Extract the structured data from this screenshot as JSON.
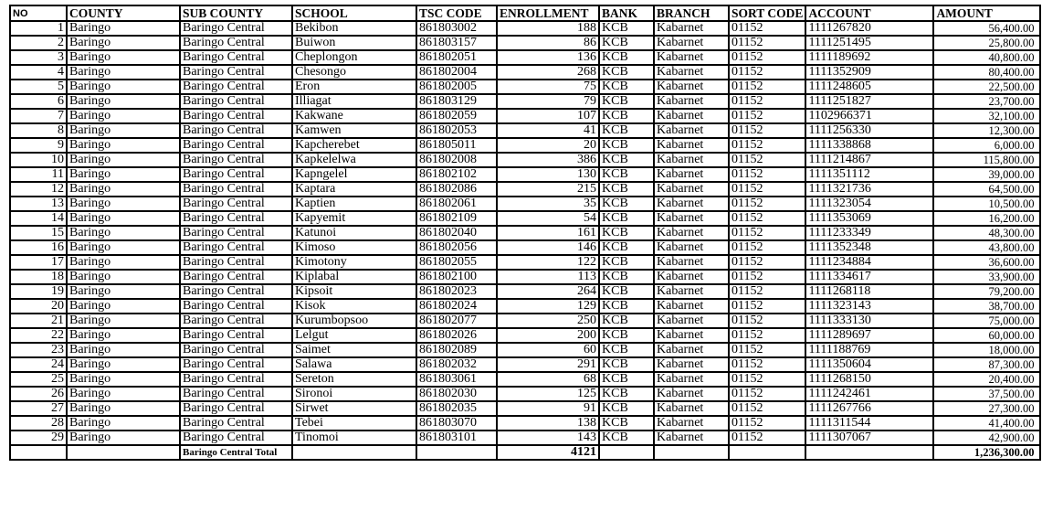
{
  "columns": [
    "NO",
    "COUNTY",
    "SUB COUNTY",
    "SCHOOL",
    "TSC CODE",
    "ENROLLMENT",
    "BANK",
    "BRANCH",
    "SORT CODE",
    "ACCOUNT",
    "AMOUNT"
  ],
  "rows": [
    [
      "1",
      "Baringo",
      "Baringo Central",
      "Bekibon",
      "861803002",
      "188",
      "KCB",
      "Kabarnet",
      "01152",
      "1111267820",
      "56,400.00"
    ],
    [
      "2",
      "Baringo",
      "Baringo Central",
      "Buiwon",
      "861803157",
      "86",
      "KCB",
      "Kabarnet",
      "01152",
      "1111251495",
      "25,800.00"
    ],
    [
      "3",
      "Baringo",
      "Baringo Central",
      "Cheplongon",
      "861802051",
      "136",
      "KCB",
      "Kabarnet",
      "01152",
      "1111189692",
      "40,800.00"
    ],
    [
      "4",
      "Baringo",
      "Baringo Central",
      "Chesongo",
      "861802004",
      "268",
      "KCB",
      "Kabarnet",
      "01152",
      "1111352909",
      "80,400.00"
    ],
    [
      "5",
      "Baringo",
      "Baringo Central",
      "Eron",
      "861802005",
      "75",
      "KCB",
      "Kabarnet",
      "01152",
      "1111248605",
      "22,500.00"
    ],
    [
      "6",
      "Baringo",
      "Baringo Central",
      "Illiagat",
      "861803129",
      "79",
      "KCB",
      "Kabarnet",
      "01152",
      "1111251827",
      "23,700.00"
    ],
    [
      "7",
      "Baringo",
      "Baringo Central",
      "Kakwane",
      "861802059",
      "107",
      "KCB",
      "Kabarnet",
      "01152",
      "1102966371",
      "32,100.00"
    ],
    [
      "8",
      "Baringo",
      "Baringo Central",
      "Kamwen",
      "861802053",
      "41",
      "KCB",
      "Kabarnet",
      "01152",
      "1111256330",
      "12,300.00"
    ],
    [
      "9",
      "Baringo",
      "Baringo Central",
      "Kapcherebet",
      "861805011",
      "20",
      "KCB",
      "Kabarnet",
      "01152",
      "1111338868",
      "6,000.00"
    ],
    [
      "10",
      "Baringo",
      "Baringo Central",
      "Kapkelelwa",
      "861802008",
      "386",
      "KCB",
      "Kabarnet",
      "01152",
      "1111214867",
      "115,800.00"
    ],
    [
      "11",
      "Baringo",
      "Baringo Central",
      "Kapngelel",
      "861802102",
      "130",
      "KCB",
      "Kabarnet",
      "01152",
      "1111351112",
      "39,000.00"
    ],
    [
      "12",
      "Baringo",
      "Baringo Central",
      "Kaptara",
      "861802086",
      "215",
      "KCB",
      "Kabarnet",
      "01152",
      "1111321736",
      "64,500.00"
    ],
    [
      "13",
      "Baringo",
      "Baringo Central",
      "Kaptien",
      "861802061",
      "35",
      "KCB",
      "Kabarnet",
      "01152",
      "1111323054",
      "10,500.00"
    ],
    [
      "14",
      "Baringo",
      "Baringo Central",
      "Kapyemit",
      "861802109",
      "54",
      "KCB",
      "Kabarnet",
      "01152",
      "1111353069",
      "16,200.00"
    ],
    [
      "15",
      "Baringo",
      "Baringo Central",
      "Katunoi",
      "861802040",
      "161",
      "KCB",
      "Kabarnet",
      "01152",
      "1111233349",
      "48,300.00"
    ],
    [
      "16",
      "Baringo",
      "Baringo Central",
      "Kimoso",
      "861802056",
      "146",
      "KCB",
      "Kabarnet",
      "01152",
      "1111352348",
      "43,800.00"
    ],
    [
      "17",
      "Baringo",
      "Baringo Central",
      "Kimotony",
      "861802055",
      "122",
      "KCB",
      "Kabarnet",
      "01152",
      "1111234884",
      "36,600.00"
    ],
    [
      "18",
      "Baringo",
      "Baringo Central",
      "Kiplabal",
      "861802100",
      "113",
      "KCB",
      "Kabarnet",
      "01152",
      "1111334617",
      "33,900.00"
    ],
    [
      "19",
      "Baringo",
      "Baringo Central",
      "Kipsoit",
      "861802023",
      "264",
      "KCB",
      "Kabarnet",
      "01152",
      "1111268118",
      "79,200.00"
    ],
    [
      "20",
      "Baringo",
      "Baringo Central",
      "Kisok",
      "861802024",
      "129",
      "KCB",
      "Kabarnet",
      "01152",
      "1111323143",
      "38,700.00"
    ],
    [
      "21",
      "Baringo",
      "Baringo Central",
      "Kurumbopsoo",
      "861802077",
      "250",
      "KCB",
      "Kabarnet",
      "01152",
      "1111333130",
      "75,000.00"
    ],
    [
      "22",
      "Baringo",
      "Baringo Central",
      "Lelgut",
      "861802026",
      "200",
      "KCB",
      "Kabarnet",
      "01152",
      "1111289697",
      "60,000.00"
    ],
    [
      "23",
      "Baringo",
      "Baringo Central",
      "Saimet",
      "861802089",
      "60",
      "KCB",
      "Kabarnet",
      "01152",
      "1111188769",
      "18,000.00"
    ],
    [
      "24",
      "Baringo",
      "Baringo Central",
      "Salawa",
      "861802032",
      "291",
      "KCB",
      "Kabarnet",
      "01152",
      "1111350604",
      "87,300.00"
    ],
    [
      "25",
      "Baringo",
      "Baringo Central",
      "Sereton",
      "861803061",
      "68",
      "KCB",
      "Kabarnet",
      "01152",
      "1111268150",
      "20,400.00"
    ],
    [
      "26",
      "Baringo",
      "Baringo Central",
      "Sironoi",
      "861802030",
      "125",
      "KCB",
      "Kabarnet",
      "01152",
      "1111242461",
      "37,500.00"
    ],
    [
      "27",
      "Baringo",
      "Baringo Central",
      "Sirwet",
      "861802035",
      "91",
      "KCB",
      "Kabarnet",
      "01152",
      "1111267766",
      "27,300.00"
    ],
    [
      "28",
      "Baringo",
      "Baringo Central",
      "Tebei",
      "861803070",
      "138",
      "KCB",
      "Kabarnet",
      "01152",
      "1111311544",
      "41,400.00"
    ],
    [
      "29",
      "Baringo",
      "Baringo Central",
      "Tinomoi",
      "861803101",
      "143",
      "KCB",
      "Kabarnet",
      "01152",
      "1111307067",
      "42,900.00"
    ]
  ],
  "total": {
    "label": "Baringo Central Total",
    "enrollment": "4121",
    "amount": "1,236,300.00"
  }
}
